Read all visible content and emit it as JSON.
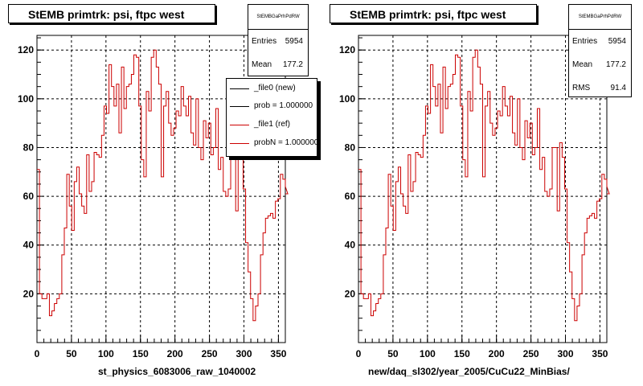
{
  "chart_data": [
    {
      "type": "line",
      "title": "StEMB primtrk: psi, ftpc west",
      "xlabel": "st_physics_6083006_raw_1040002",
      "xlim": [
        0,
        360
      ],
      "ylim": [
        0,
        126
      ],
      "xticks": [
        0,
        50,
        100,
        150,
        200,
        250,
        300,
        350
      ],
      "yticks": [
        20,
        40,
        60,
        80,
        100,
        120
      ],
      "grid": true,
      "series_color": "#cc0000",
      "stats": {
        "name": "StEMBGaPrhPdRW",
        "rows": [
          {
            "key": "Entries",
            "value": "5954"
          },
          {
            "key": "Mean",
            "value": "177.2"
          }
        ]
      },
      "legend": {
        "position": "top-right",
        "entries": [
          {
            "label": "_file0 (new)",
            "color": "#000000"
          },
          {
            "label": "prob = 1.000000",
            "color": "#000000"
          },
          {
            "label": "_file1 (ref)",
            "color": "#cc0000"
          },
          {
            "label": "probN = 1.000000",
            "color": "#cc0000"
          }
        ]
      },
      "bin_width": 3.6,
      "values": [
        71,
        20,
        18,
        18,
        20,
        11,
        13,
        16,
        18,
        20,
        36,
        47,
        69,
        56,
        46,
        66,
        72,
        61,
        56,
        53,
        77,
        62,
        66,
        78,
        77,
        76,
        85,
        97,
        94,
        114,
        105,
        97,
        106,
        86,
        113,
        96,
        105,
        106,
        110,
        118,
        117,
        97,
        75,
        68,
        103,
        95,
        117,
        120,
        113,
        106,
        68,
        97,
        103,
        90,
        85,
        88,
        95,
        93,
        105,
        97,
        93,
        101,
        86,
        81,
        100,
        80,
        75,
        91,
        84,
        90,
        77,
        80,
        96,
        71,
        76,
        62,
        60,
        63,
        80,
        80,
        54,
        82,
        76,
        63,
        41,
        29,
        18,
        9,
        15,
        20,
        36,
        45,
        51,
        52,
        53,
        51,
        58,
        59,
        69,
        67,
        64,
        61
      ]
    },
    {
      "type": "line",
      "title": "StEMB primtrk: psi, ftpc west",
      "xlabel": "new/daq_sl302/year_2005/CuCu22_MinBias/",
      "xlim": [
        0,
        360
      ],
      "ylim": [
        0,
        126
      ],
      "xticks": [
        0,
        50,
        100,
        150,
        200,
        250,
        300,
        350
      ],
      "yticks": [
        20,
        40,
        60,
        80,
        100,
        120
      ],
      "grid": true,
      "series_color": "#cc0000",
      "stats": {
        "name": "StEMBGaPrhPdRW",
        "rows": [
          {
            "key": "Entries",
            "value": "5954"
          },
          {
            "key": "Mean",
            "value": "177.2"
          },
          {
            "key": "RMS",
            "value": "91.4"
          }
        ]
      },
      "bin_width": 3.6,
      "values": [
        71,
        20,
        18,
        18,
        20,
        11,
        13,
        16,
        18,
        20,
        36,
        47,
        69,
        56,
        46,
        66,
        72,
        61,
        56,
        53,
        77,
        62,
        66,
        78,
        77,
        76,
        85,
        97,
        94,
        114,
        105,
        97,
        106,
        86,
        113,
        96,
        105,
        106,
        110,
        118,
        117,
        97,
        75,
        68,
        103,
        95,
        117,
        120,
        113,
        106,
        68,
        97,
        103,
        90,
        85,
        88,
        95,
        93,
        105,
        97,
        93,
        101,
        86,
        81,
        100,
        80,
        75,
        91,
        84,
        90,
        77,
        80,
        96,
        71,
        76,
        62,
        60,
        63,
        80,
        80,
        54,
        82,
        76,
        63,
        41,
        29,
        18,
        9,
        15,
        20,
        36,
        45,
        51,
        52,
        53,
        51,
        58,
        59,
        69,
        67,
        64,
        61
      ]
    }
  ]
}
